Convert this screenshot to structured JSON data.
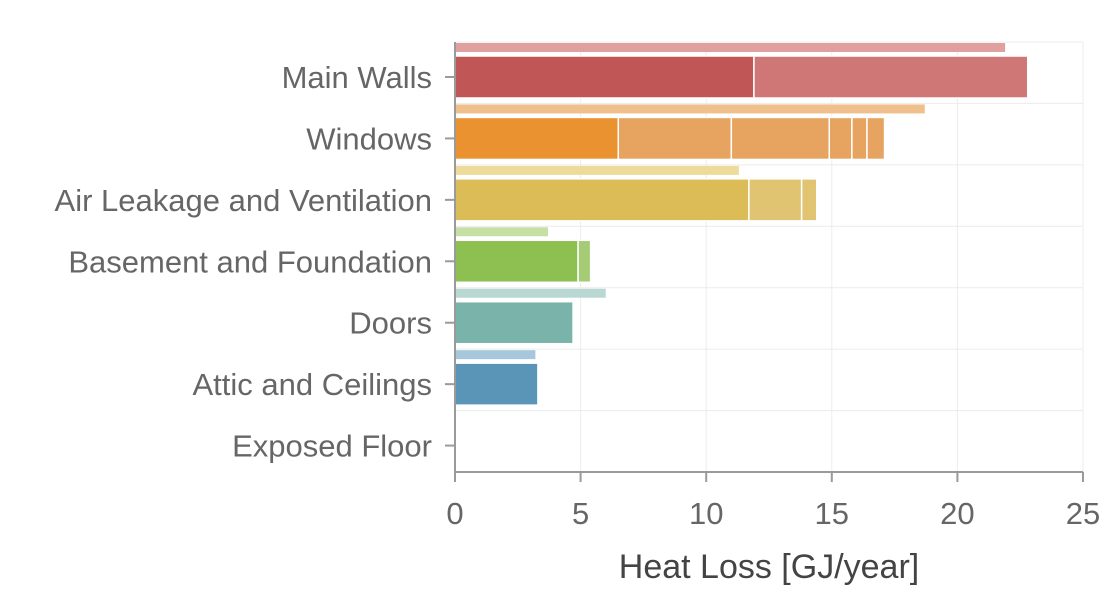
{
  "chart_data": {
    "type": "bar",
    "orientation": "horizontal",
    "stacked": true,
    "categories": [
      "Main Walls",
      "Windows",
      "Air Leakage and Ventilation",
      "Basement and Foundation",
      "Doors",
      "Attic and Ceilings",
      "Exposed Floor"
    ],
    "reference_values": [
      21.9,
      18.7,
      11.3,
      3.7,
      6.0,
      3.2,
      0
    ],
    "segments": [
      [
        11.9,
        10.9
      ],
      [
        6.5,
        4.5,
        3.9,
        0.9,
        0.6,
        0.7
      ],
      [
        11.7,
        2.1,
        0.6
      ],
      [
        4.9,
        0.5
      ],
      [
        4.7
      ],
      [
        3.3
      ],
      []
    ],
    "colors": {
      "main": [
        "#c15656",
        "#e9922f",
        "#dbbc57",
        "#8dbf51",
        "#7ab3aa",
        "#5a95b8",
        "#999999"
      ],
      "light": [
        "#cf7676",
        "#e6a460",
        "#e0c472",
        "#a5cc75",
        "#94c3bb",
        "#7aa9c6",
        "#bbbbbb"
      ],
      "reference": [
        "#e1a0a0",
        "#f0c08c",
        "#eedb9a",
        "#c6dfa5",
        "#b9d8d3",
        "#a7c8dc",
        "#dddddd"
      ]
    },
    "xlabel": "Heat Loss [GJ/year]",
    "xlim": [
      0,
      25
    ],
    "xticks": [
      0,
      5,
      10,
      15,
      20,
      25
    ],
    "grid": true
  }
}
